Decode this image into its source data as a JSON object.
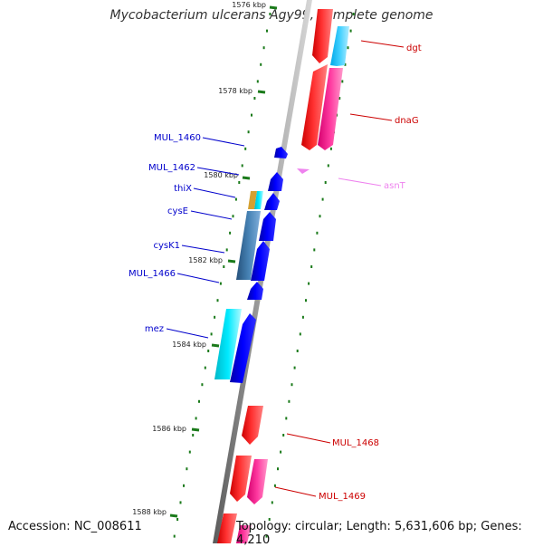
{
  "title": "Mycobacterium ulcerans Agy99, complete genome",
  "footer": {
    "accession": "Accession: NC_008611",
    "summary": "Topology: circular; Length: 5,631,606 bp; Genes: 4,210"
  },
  "colors": {
    "backbone": "#8c8c8c",
    "tick": "#1a7a1a",
    "gene_forward_label": "#0000cc",
    "gene_reverse_label": "#cc0000",
    "rna_label": "#ee82ee"
  },
  "ruler": {
    "ticks": [
      "1576 kbp",
      "1578 kbp",
      "1580 kbp",
      "1582 kbp",
      "1584 kbp",
      "1586 kbp",
      "1588 kbp"
    ]
  },
  "genes": [
    {
      "id": "dgt",
      "label": "dgt",
      "strand": "reverse",
      "color": "#ff0000",
      "type": "cds"
    },
    {
      "id": "dgt-cog",
      "label": "",
      "strand": "reverse",
      "color": "#00bfff",
      "type": "cog"
    },
    {
      "id": "dnaG",
      "label": "dnaG",
      "strand": "reverse",
      "color": "#ff0000",
      "type": "cds"
    },
    {
      "id": "dnaG-cog",
      "label": "",
      "strand": "reverse",
      "color": "#ff1493",
      "type": "cog"
    },
    {
      "id": "asnT",
      "label": "asnT",
      "strand": "reverse",
      "color": "#ee82ee",
      "type": "trna"
    },
    {
      "id": "MUL_1460",
      "label": "MUL_1460",
      "strand": "forward",
      "color": "#0000ff",
      "type": "cds"
    },
    {
      "id": "MUL_1462",
      "label": "MUL_1462",
      "strand": "forward",
      "color": "#0000ff",
      "type": "cds"
    },
    {
      "id": "thiX",
      "label": "thiX",
      "strand": "forward",
      "color": "#0000ff",
      "type": "cds"
    },
    {
      "id": "cysE",
      "label": "cysE",
      "strand": "forward",
      "color": "#0000ff",
      "type": "cds"
    },
    {
      "id": "cysK1",
      "label": "cysK1",
      "strand": "forward",
      "color": "#0000ff",
      "type": "cds"
    },
    {
      "id": "MUL_1466",
      "label": "MUL_1466",
      "strand": "forward",
      "color": "#0000ff",
      "type": "cds"
    },
    {
      "id": "mez",
      "label": "mez",
      "strand": "forward",
      "color": "#0000ff",
      "type": "cds"
    },
    {
      "id": "MUL_1468",
      "label": "MUL_1468",
      "strand": "reverse",
      "color": "#ff0000",
      "type": "cds"
    },
    {
      "id": "MUL_1469",
      "label": "MUL_1469",
      "strand": "reverse",
      "color": "#ff0000",
      "type": "cds"
    }
  ]
}
